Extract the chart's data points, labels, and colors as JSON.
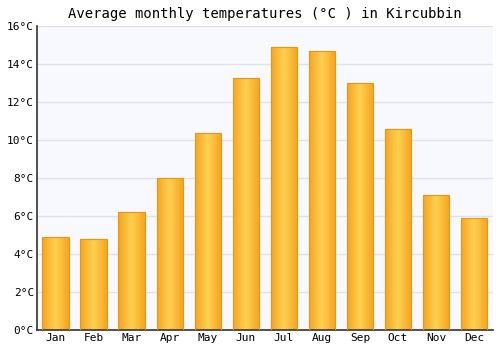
{
  "title": "Average monthly temperatures (°C ) in Kircubbin",
  "months": [
    "Jan",
    "Feb",
    "Mar",
    "Apr",
    "May",
    "Jun",
    "Jul",
    "Aug",
    "Sep",
    "Oct",
    "Nov",
    "Dec"
  ],
  "values": [
    4.9,
    4.8,
    6.2,
    8.0,
    10.4,
    13.3,
    14.9,
    14.7,
    13.0,
    10.6,
    7.1,
    5.9
  ],
  "bar_color_left": "#F5A623",
  "bar_color_center": "#FFD050",
  "bar_color_right": "#F5A623",
  "bar_edge_color": "#E8960A",
  "ylim": [
    0,
    16
  ],
  "ytick_step": 2,
  "background_color": "#FFFFFF",
  "plot_bg_color": "#F8F8FF",
  "grid_color": "#E0E0E8",
  "title_fontsize": 10,
  "tick_fontsize": 8,
  "font_family": "monospace",
  "spine_color": "#333333"
}
